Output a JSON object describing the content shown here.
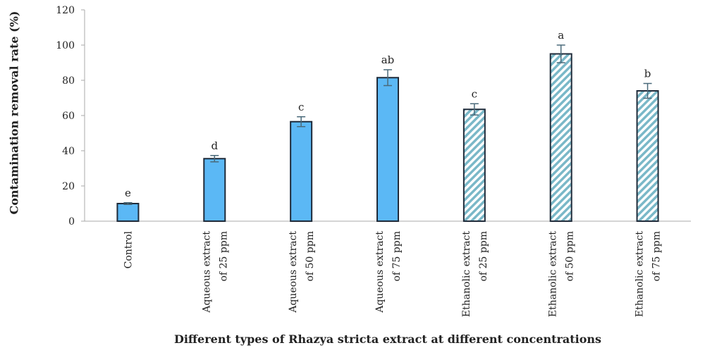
{
  "chart_data": {
    "type": "bar",
    "title": "",
    "xlabel": "Different types of Rhazya stricta extract at different concentrations",
    "ylabel": "Contamination removal rate (%)",
    "ylim": [
      0,
      120
    ],
    "yticks": [
      0,
      20,
      40,
      60,
      80,
      100,
      120
    ],
    "grid": false,
    "categories": [
      [
        "Control"
      ],
      [
        "Aqueous extract",
        "of 25 ppm"
      ],
      [
        "Aqueous extract",
        "of 50 ppm"
      ],
      [
        "Aqueous extract",
        "of 75 ppm"
      ],
      [
        "Ethanolic extract",
        "of 25 ppm"
      ],
      [
        "Ethanolic extract",
        "of 50 ppm"
      ],
      [
        "Ethanolic extract",
        "of 75 ppm"
      ]
    ],
    "values": [
      10,
      35.5,
      56.5,
      81.5,
      63.5,
      95,
      74
    ],
    "errors": [
      0.5,
      1.8,
      2.8,
      4.5,
      3.2,
      5,
      4.2
    ],
    "significance_labels": [
      "e",
      "d",
      "c",
      "ab",
      "c",
      "a",
      "b"
    ],
    "bar_styles": [
      "solid",
      "solid",
      "solid",
      "solid",
      "hatched",
      "hatched",
      "hatched"
    ],
    "colors": {
      "solid_fill": "#5bb8f5",
      "hatch_fill": "#7ab8c8",
      "bar_edge": "#1f2b3a",
      "error_bar": "#4a6a7a",
      "axis": "#aaaaaa",
      "text": "#222222"
    }
  }
}
